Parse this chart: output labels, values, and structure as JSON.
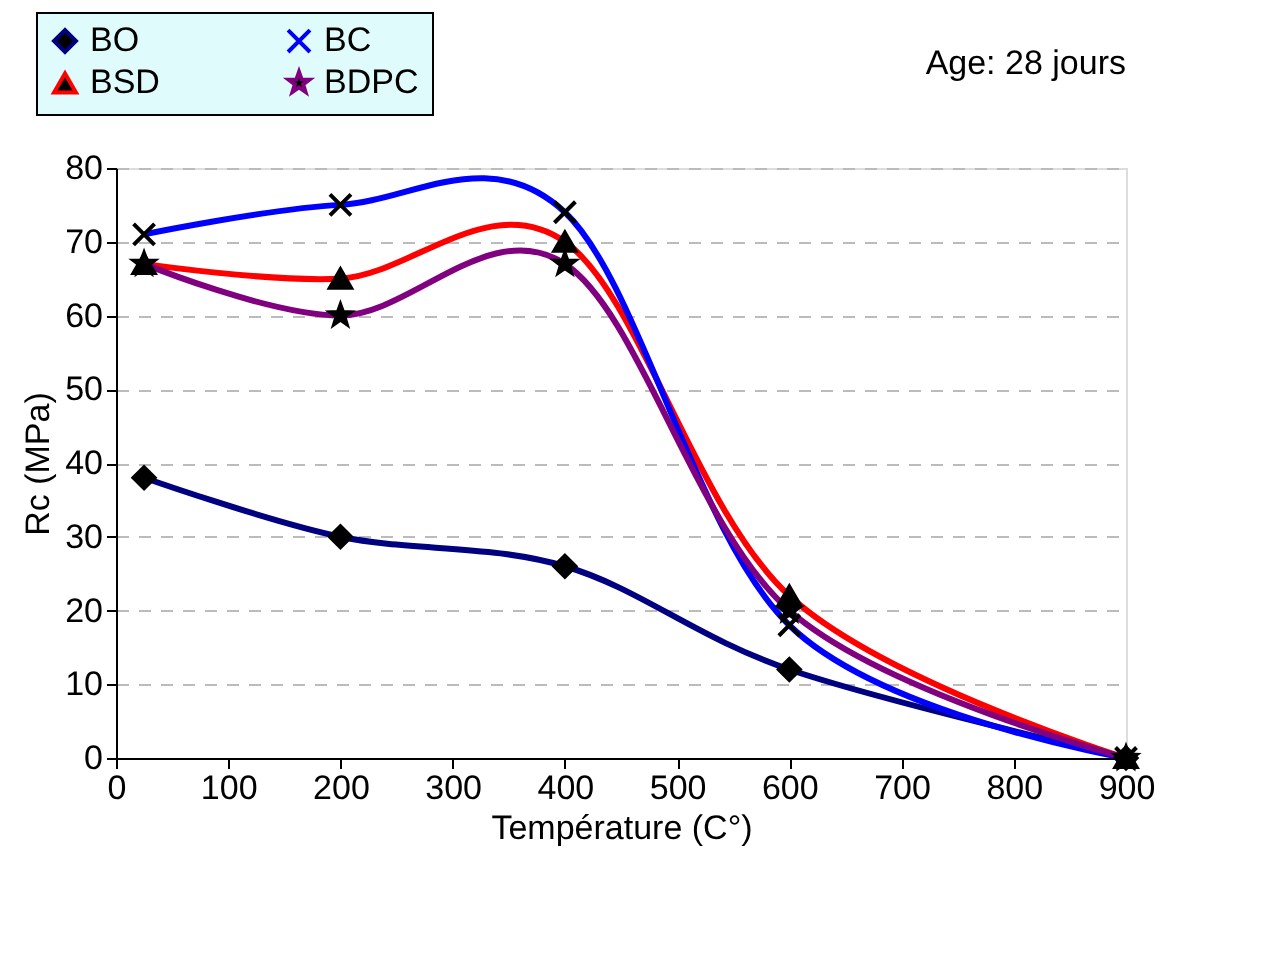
{
  "chart_data": {
    "type": "line",
    "xlabel": "Température (C°)",
    "ylabel": "Rc (MPa)",
    "annotations": [
      "Age: 28 jours"
    ],
    "x": [
      25,
      200,
      400,
      600,
      900
    ],
    "series": [
      {
        "name": "BO",
        "color": "#000080",
        "marker": "diamond",
        "values": [
          38,
          30,
          26,
          12,
          0
        ]
      },
      {
        "name": "BSD",
        "color": "#ff0000",
        "marker": "triangle",
        "values": [
          67,
          65,
          70,
          22,
          0
        ]
      },
      {
        "name": "BC",
        "color": "#0000ff",
        "marker": "cross",
        "values": [
          71,
          75,
          74,
          18,
          0
        ]
      },
      {
        "name": "BDPC",
        "color": "#800080",
        "marker": "star",
        "values": [
          67,
          60,
          67,
          20,
          0
        ]
      }
    ],
    "xlim": [
      0,
      900
    ],
    "xticks": [
      0,
      100,
      200,
      300,
      400,
      500,
      600,
      700,
      800,
      900
    ],
    "ylim": [
      0,
      80
    ],
    "yticks": [
      0,
      10,
      20,
      30,
      40,
      50,
      60,
      70,
      80
    ],
    "grid": "y",
    "legend": "top left",
    "line_style": "solid"
  }
}
